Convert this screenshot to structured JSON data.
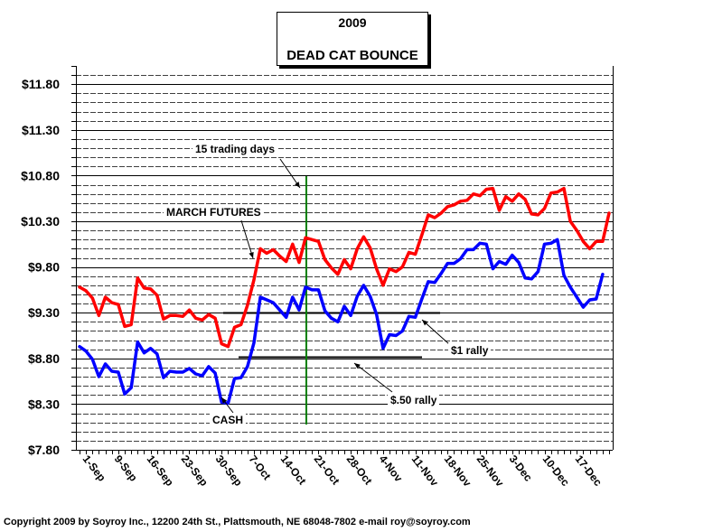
{
  "chart_data": {
    "type": "line",
    "title": "2009",
    "subtitle": "DEAD CAT BOUNCE",
    "ylim": [
      7.8,
      12.0
    ],
    "y_ticks": [
      "$7.80",
      "$8.30",
      "$8.80",
      "$9.30",
      "$9.80",
      "$10.30",
      "$10.80",
      "$11.30",
      "$11.80"
    ],
    "x_ticks": [
      "1-Sep",
      "9-Sep",
      "16-Sep",
      "23-Sep",
      "30-Sep",
      "7-Oct",
      "14-Oct",
      "21-Oct",
      "28-Oct",
      "4-Nov",
      "11-Nov",
      "18-Nov",
      "25-Nov",
      "3-Dec",
      "10-Dec",
      "17-Dec"
    ],
    "series": [
      {
        "name": "MARCH FUTURES",
        "color": "#ff0000",
        "values": [
          9.58,
          9.54,
          9.46,
          9.27,
          9.47,
          9.41,
          9.39,
          9.15,
          9.17,
          9.68,
          9.57,
          9.56,
          9.49,
          9.23,
          9.27,
          9.27,
          9.26,
          9.33,
          9.24,
          9.22,
          9.28,
          9.24,
          8.96,
          8.93,
          9.14,
          9.17,
          9.38,
          9.66,
          10.0,
          9.95,
          9.99,
          9.92,
          9.86,
          10.05,
          9.85,
          10.12,
          10.1,
          10.08,
          9.88,
          9.79,
          9.72,
          9.88,
          9.78,
          10.0,
          10.13,
          10.01,
          9.78,
          9.6,
          9.78,
          9.75,
          9.8,
          9.96,
          9.94,
          10.15,
          10.37,
          10.34,
          10.39,
          10.46,
          10.48,
          10.52,
          10.53,
          10.6,
          10.58,
          10.65,
          10.66,
          10.42,
          10.57,
          10.52,
          10.6,
          10.54,
          10.38,
          10.37,
          10.44,
          10.61,
          10.62,
          10.66,
          10.3,
          10.2,
          10.08,
          10.0,
          10.08,
          10.08,
          10.39
        ]
      },
      {
        "name": "CASH",
        "color": "#0000ff",
        "values": [
          8.93,
          8.88,
          8.79,
          8.6,
          8.74,
          8.66,
          8.65,
          8.41,
          8.48,
          8.98,
          8.86,
          8.91,
          8.85,
          8.59,
          8.66,
          8.65,
          8.65,
          8.69,
          8.63,
          8.61,
          8.71,
          8.64,
          8.32,
          8.31,
          8.58,
          8.59,
          8.71,
          8.97,
          9.47,
          9.44,
          9.41,
          9.33,
          9.25,
          9.47,
          9.33,
          9.58,
          9.55,
          9.55,
          9.32,
          9.24,
          9.2,
          9.37,
          9.27,
          9.48,
          9.6,
          9.48,
          9.28,
          8.91,
          9.06,
          9.05,
          9.1,
          9.26,
          9.25,
          9.45,
          9.64,
          9.63,
          9.73,
          9.84,
          9.84,
          9.89,
          9.99,
          9.99,
          10.06,
          10.05,
          9.78,
          9.86,
          9.83,
          9.93,
          9.85,
          9.68,
          9.67,
          9.75,
          10.05,
          10.06,
          10.1,
          9.71,
          9.58,
          9.47,
          9.36,
          9.44,
          9.45,
          9.72
        ]
      }
    ],
    "reference_lines": [
      {
        "label": "$1 rally",
        "y": 9.3
      },
      {
        "label": "$.50 rally",
        "y": 8.82
      }
    ],
    "vertical_marker": {
      "label": "15 trading days"
    },
    "annotations": [
      "MARCH FUTURES",
      "CASH",
      "15 trading days",
      "$1 rally",
      "$.50 rally"
    ],
    "grid": "horizontal dashed"
  },
  "footer": "Copyright 2009 by Soyroy Inc., 12200 24th St., Plattsmouth, NE 68048-7802 e-mail roy@soyroy.com"
}
